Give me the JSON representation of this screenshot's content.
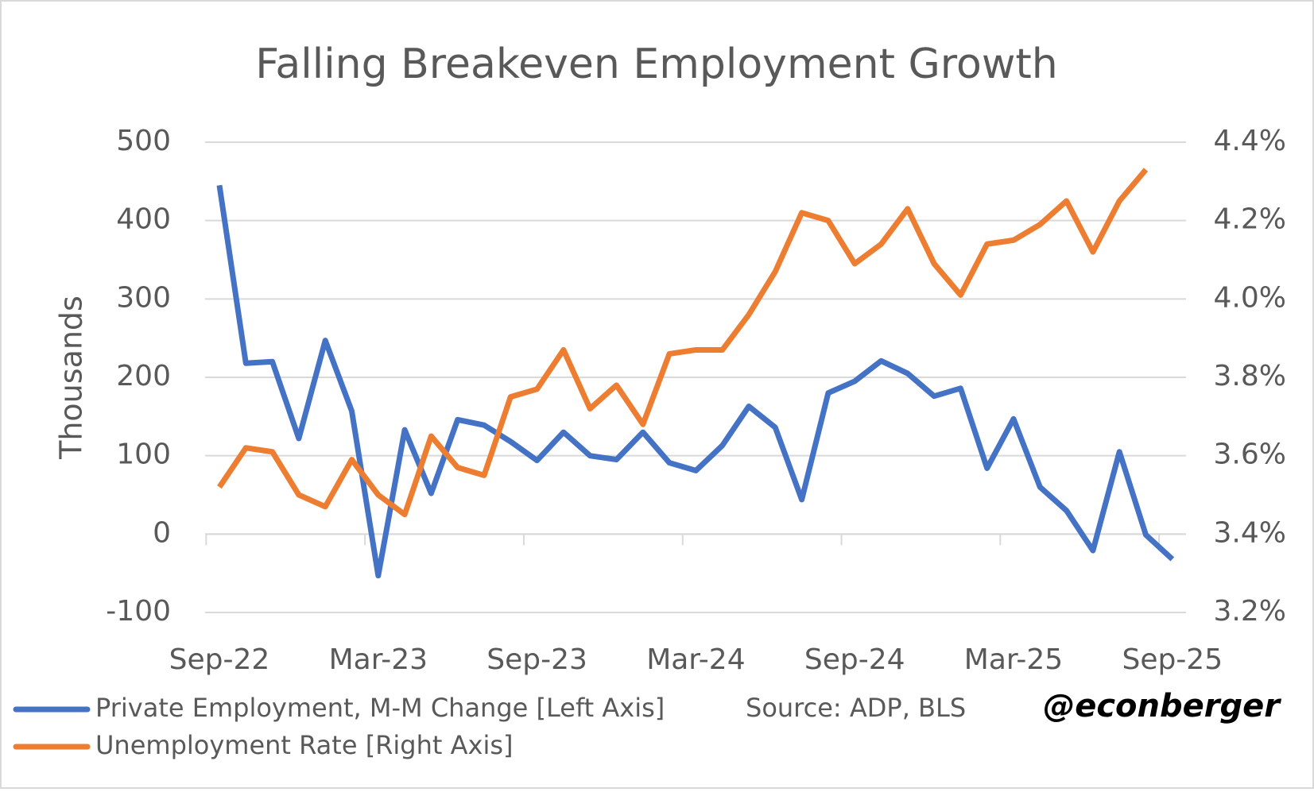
{
  "chart_data": {
    "type": "line",
    "title": "Falling Breakeven Employment Growth",
    "y_label": "Thousands",
    "source": "Source: ADP, BLS",
    "credit": "@econberger",
    "categories": [
      "Sep-22",
      null,
      null,
      null,
      null,
      null,
      "Mar-23",
      null,
      null,
      null,
      null,
      null,
      "Sep-23",
      null,
      null,
      null,
      null,
      null,
      "Mar-24",
      null,
      null,
      null,
      null,
      null,
      "Sep-24",
      null,
      null,
      null,
      null,
      null,
      "Mar-25",
      null,
      null,
      null,
      null,
      null,
      "Sep-25"
    ],
    "series": [
      {
        "name": "Private Employment, M-M Change [Left Axis]",
        "color": "#4472c4",
        "values": [
          445,
          218,
          220,
          122,
          247,
          157,
          -53,
          133,
          52,
          146,
          139,
          118,
          94,
          130,
          100,
          95,
          130,
          91,
          81,
          113,
          163,
          136,
          44,
          180,
          195,
          221,
          205,
          176,
          186,
          84,
          147,
          60,
          30,
          -21,
          105,
          -1,
          -32
        ]
      },
      {
        "name": "Unemployment Rate [Right Axis]",
        "color": "#ed7d31",
        "axis": "y2",
        "values": [
          3.52,
          3.62,
          3.61,
          3.5,
          3.47,
          3.59,
          3.5,
          3.45,
          3.65,
          3.57,
          3.55,
          3.75,
          3.77,
          3.87,
          3.72,
          3.78,
          3.68,
          3.86,
          3.87,
          3.87,
          3.96,
          4.07,
          4.22,
          4.2,
          4.09,
          4.14,
          4.23,
          4.09,
          4.01,
          4.14,
          4.15,
          4.19,
          4.25,
          4.12,
          4.25,
          4.33,
          null
        ]
      }
    ],
    "ylim": [
      -100,
      500
    ],
    "yticks": [
      -100,
      0,
      100,
      200,
      300,
      400,
      500
    ],
    "y2lim": [
      3.2,
      4.4
    ],
    "y2ticks": [
      {
        "value": 3.2,
        "label": "3.2%"
      },
      {
        "value": 3.4,
        "label": "3.4%"
      },
      {
        "value": 3.6,
        "label": "3.6%"
      },
      {
        "value": 3.8,
        "label": "3.8%"
      },
      {
        "value": 4.0,
        "label": "4.0%"
      },
      {
        "value": 4.2,
        "label": "4.2%"
      },
      {
        "value": 4.4,
        "label": "4.4%"
      }
    ],
    "grid": true
  }
}
